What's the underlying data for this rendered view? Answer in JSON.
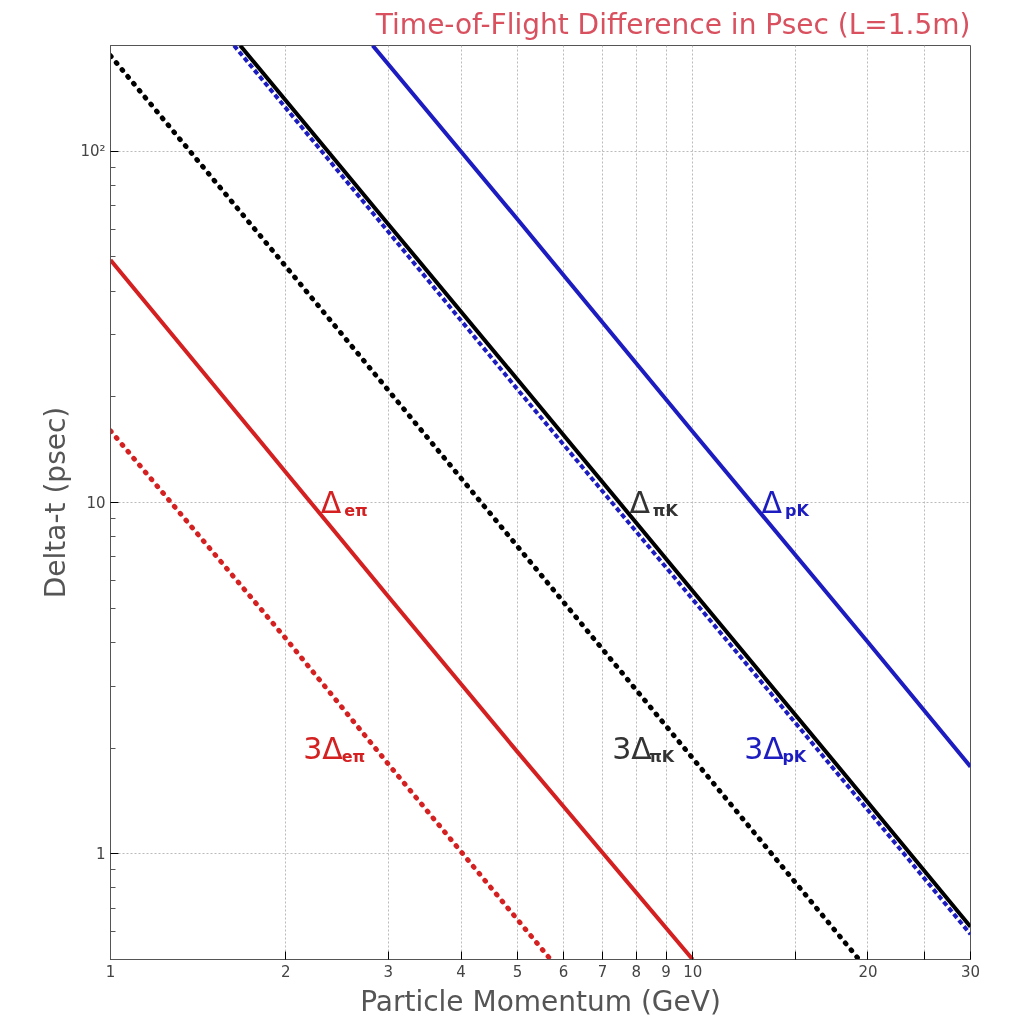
{
  "chart_data": {
    "type": "line",
    "title": "Time-of-Flight Difference in Psec (L=1.5m)",
    "xlabel": "Particle Momentum (GeV)",
    "ylabel": "Delta-t (psec)",
    "log": "xy",
    "grid": true,
    "marker": "none",
    "xlim": [
      1,
      30
    ],
    "ylim": [
      0.5,
      200
    ],
    "xticks": [
      1,
      2,
      3,
      4,
      5,
      6,
      7,
      8,
      9,
      10,
      {
        "value": 15,
        "label": null
      },
      20,
      {
        "value": 25,
        "label": null
      },
      30
    ],
    "yticks": [
      1,
      10,
      {
        "value": 100,
        "label": "10²"
      }
    ],
    "series": [
      {
        "name": "Δ$_{eπ}$",
        "color": "#d42020",
        "line_style": "solid",
        "x": [
          1,
          2,
          3,
          5,
          10
        ],
        "values": [
          49,
          12.2,
          5.4,
          1.95,
          0.5
        ]
      },
      {
        "name": "3Δ$_{eπ}$",
        "color": "#d42020",
        "line_style": "dotted",
        "x": [
          1,
          2,
          3,
          5.7
        ],
        "values": [
          16,
          4.1,
          1.8,
          0.5
        ]
      },
      {
        "name": "3Δ$_{πK}$",
        "color": "#000000",
        "line_style": "dotted",
        "x": [
          1,
          2,
          5,
          10,
          19.3
        ],
        "values": [
          187,
          47,
          7.5,
          1.87,
          0.5
        ]
      },
      {
        "name": "Δ$_{πK}$",
        "color": "#000000",
        "line_style": "solid",
        "x": [
          1.67,
          3,
          5,
          10,
          20,
          30
        ],
        "values": [
          200,
          62,
          22.4,
          5.6,
          1.4,
          0.62
        ]
      },
      {
        "name": "3Δ$_{pK}$",
        "color": "#1c1cc0",
        "line_style": "dashed",
        "x": [
          1.63,
          3,
          5,
          10,
          20,
          30
        ],
        "values": [
          200,
          59,
          21,
          5.3,
          1.33,
          0.59
        ]
      },
      {
        "name": "Δ$_{pK}$",
        "color": "#1c1cc0",
        "line_style": "solid",
        "x": [
          2.82,
          5,
          10,
          20,
          30
        ],
        "values": [
          200,
          64,
          15.9,
          4,
          1.77
        ]
      }
    ]
  }
}
